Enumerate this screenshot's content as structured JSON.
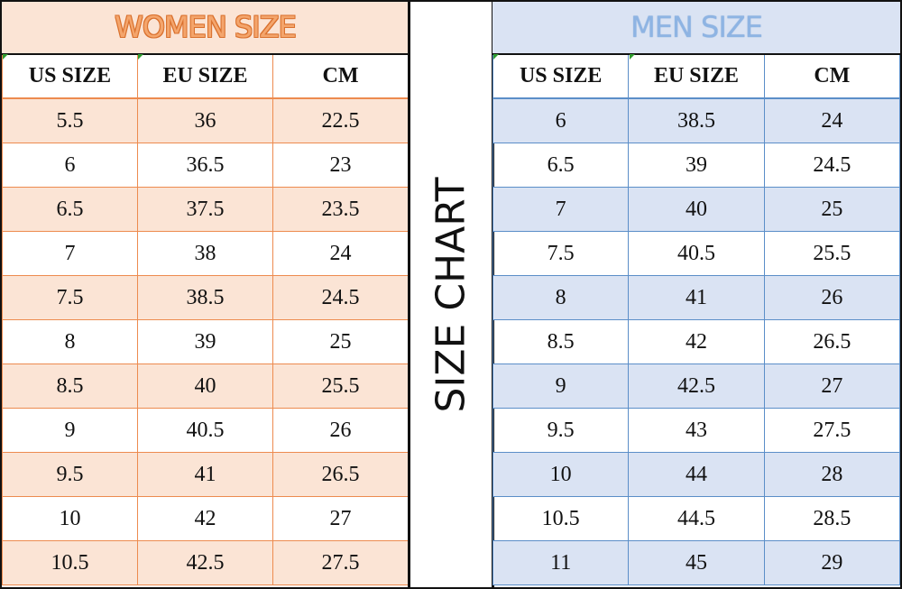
{
  "center_title": "SIZE CHART",
  "colors": {
    "women_accent": "#ed8b4f",
    "women_fill": "#fbe4d5",
    "men_accent": "#5b8ec8",
    "men_fill": "#dae3f3"
  },
  "women": {
    "title": "WOMEN SIZE",
    "headers": [
      "US SIZE",
      "EU SIZE",
      "CM"
    ],
    "rows": [
      [
        "5.5",
        "36",
        "22.5"
      ],
      [
        "6",
        "36.5",
        "23"
      ],
      [
        "6.5",
        "37.5",
        "23.5"
      ],
      [
        "7",
        "38",
        "24"
      ],
      [
        "7.5",
        "38.5",
        "24.5"
      ],
      [
        "8",
        "39",
        "25"
      ],
      [
        "8.5",
        "40",
        "25.5"
      ],
      [
        "9",
        "40.5",
        "26"
      ],
      [
        "9.5",
        "41",
        "26.5"
      ],
      [
        "10",
        "42",
        "27"
      ],
      [
        "10.5",
        "42.5",
        "27.5"
      ]
    ]
  },
  "men": {
    "title": "MEN SIZE",
    "headers": [
      "US SIZE",
      "EU SIZE",
      "CM"
    ],
    "rows": [
      [
        "6",
        "38.5",
        "24"
      ],
      [
        "6.5",
        "39",
        "24.5"
      ],
      [
        "7",
        "40",
        "25"
      ],
      [
        "7.5",
        "40.5",
        "25.5"
      ],
      [
        "8",
        "41",
        "26"
      ],
      [
        "8.5",
        "42",
        "26.5"
      ],
      [
        "9",
        "42.5",
        "27"
      ],
      [
        "9.5",
        "43",
        "27.5"
      ],
      [
        "10",
        "44",
        "28"
      ],
      [
        "10.5",
        "44.5",
        "28.5"
      ],
      [
        "11",
        "45",
        "29"
      ]
    ]
  }
}
